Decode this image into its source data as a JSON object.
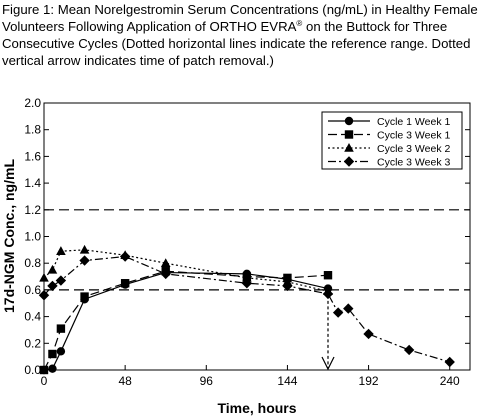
{
  "caption": {
    "text": "Figure 1: Mean Norelgestromin Serum Concentrations (ng/mL) in Healthy Female Volunteers Following Application of ORTHO EVRA",
    "sup": "®",
    "text2": " on the Buttock for Three Consecutive Cycles (Dotted horizontal lines indicate the reference range. Dotted vertical arrow indicates time of patch removal.)"
  },
  "chart_data": {
    "type": "line",
    "xlabel": "Time, hours",
    "ylabel": "17d-NGM Conc., ng/mL",
    "xlim": [
      0,
      252
    ],
    "ylim": [
      0.0,
      2.0
    ],
    "xticks": [
      0,
      48,
      96,
      144,
      192,
      240
    ],
    "yticks": [
      0.0,
      0.2,
      0.4,
      0.6,
      0.8,
      1.0,
      1.2,
      1.4,
      1.6,
      1.8,
      2.0
    ],
    "ytick_labels": [
      "0.0",
      "0.2",
      "0.4",
      "0.6",
      "0.8",
      "1.0",
      "1.2",
      "1.4",
      "1.6",
      "1.8",
      "2.0"
    ],
    "reference_lines": [
      0.6,
      1.2
    ],
    "patch_removal_hour": 168,
    "legend_position": "top-right",
    "series": [
      {
        "name": "Cycle 1 Week 1",
        "marker": "circle",
        "dash": "solid",
        "x": [
          0,
          5,
          10,
          24,
          48,
          72,
          120,
          144,
          168
        ],
        "y": [
          0.0,
          0.01,
          0.14,
          0.53,
          0.64,
          0.73,
          0.72,
          0.68,
          0.61
        ]
      },
      {
        "name": "Cycle 3 Week 1",
        "marker": "square",
        "dash": "longdash",
        "x": [
          0,
          5,
          10,
          24,
          48,
          72,
          120,
          144,
          168
        ],
        "y": [
          0.0,
          0.12,
          0.31,
          0.55,
          0.65,
          0.74,
          0.7,
          0.69,
          0.71
        ]
      },
      {
        "name": "Cycle 3 Week 2",
        "marker": "triangle",
        "dash": "dotted",
        "x": [
          0,
          5,
          10,
          24,
          48,
          72,
          120,
          144,
          168
        ],
        "y": [
          0.69,
          0.75,
          0.89,
          0.9,
          0.86,
          0.8,
          0.69,
          0.66,
          0.59
        ]
      },
      {
        "name": "Cycle 3 Week 3",
        "marker": "diamond",
        "dash": "dashdot",
        "x": [
          0,
          5,
          10,
          24,
          48,
          72,
          120,
          144,
          168,
          174,
          180,
          192,
          216,
          240
        ],
        "y": [
          0.56,
          0.63,
          0.67,
          0.82,
          0.85,
          0.72,
          0.65,
          0.63,
          0.57,
          0.43,
          0.46,
          0.27,
          0.15,
          0.06
        ]
      }
    ]
  }
}
